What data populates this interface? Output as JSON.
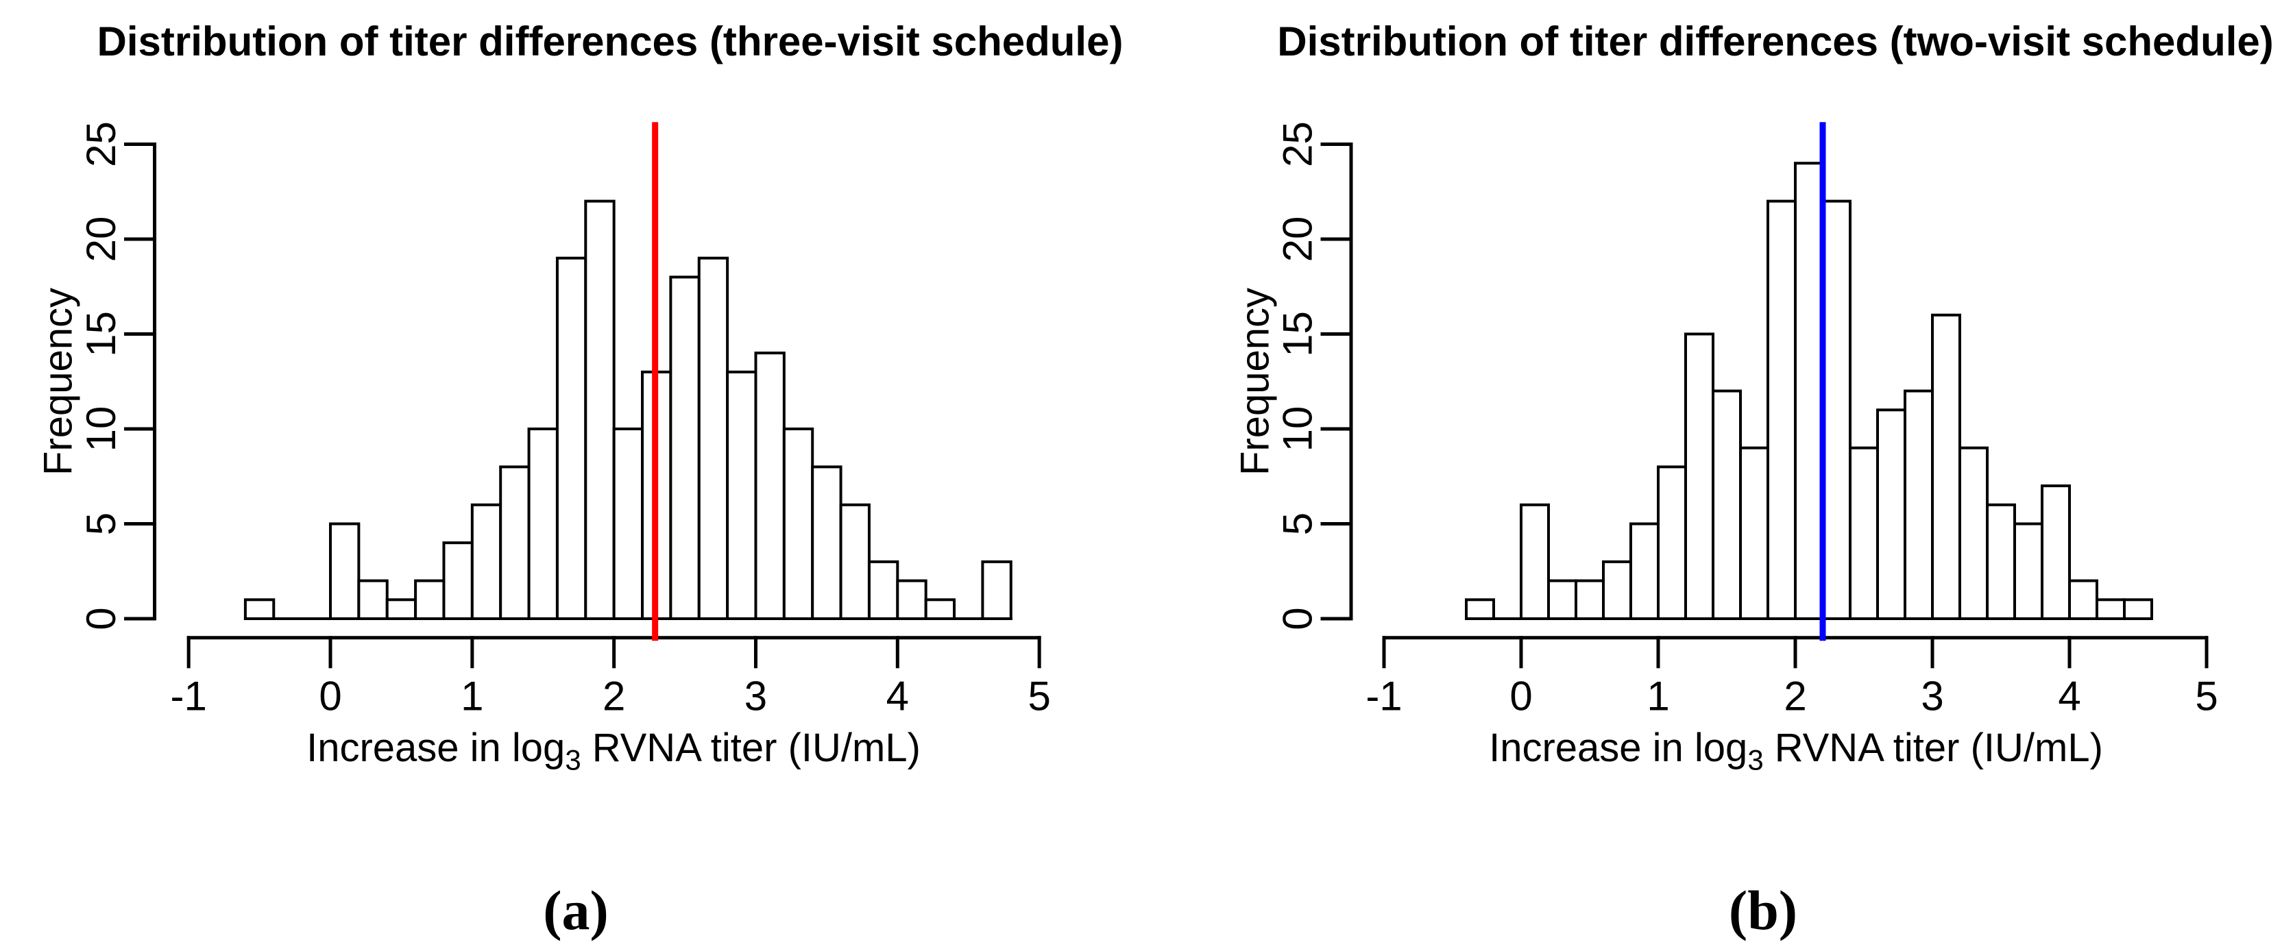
{
  "figure": {
    "captions": {
      "a": "(a)",
      "b": "(b)"
    }
  },
  "chart_data": [
    {
      "type": "bar",
      "panel": "a",
      "title": "Distribution of titer differences (three-visit schedule)",
      "ylabel": "Frequency",
      "xlabel_parts": {
        "pre": "Increase in log",
        "sub": "3",
        "post": " RVNA titer (IU/mL)"
      },
      "x_ticks": [
        -1,
        0,
        1,
        2,
        3,
        4,
        5
      ],
      "y_ticks": [
        0,
        5,
        10,
        15,
        20,
        25
      ],
      "xlim": [
        -1.24,
        5.24
      ],
      "ylim": [
        -1,
        26
      ],
      "grid": false,
      "legend": "none",
      "bin_start": -0.6,
      "bin_width": 0.2,
      "counts": [
        1,
        0,
        0,
        5,
        2,
        1,
        2,
        4,
        6,
        8,
        10,
        19,
        22,
        10,
        13,
        18,
        19,
        13,
        14,
        10,
        8,
        6,
        3,
        2,
        1,
        0,
        3
      ],
      "mean_line": {
        "x": 2.29,
        "color": "#FF0000"
      },
      "bar_fill": "#FFFFFF",
      "bar_stroke": "#000000"
    },
    {
      "type": "bar",
      "panel": "b",
      "title": "Distribution of titer differences (two-visit schedule)",
      "ylabel": "Frequency",
      "xlabel_parts": {
        "pre": "Increase in log",
        "sub": "3",
        "post": " RVNA titer (IU/mL)"
      },
      "x_ticks": [
        -1,
        0,
        1,
        2,
        3,
        4,
        5
      ],
      "y_ticks": [
        0,
        5,
        10,
        15,
        20,
        25
      ],
      "xlim": [
        -1.24,
        5.24
      ],
      "ylim": [
        -1,
        26
      ],
      "grid": false,
      "legend": "none",
      "bin_start": -0.4,
      "bin_width": 0.2,
      "counts": [
        1,
        0,
        6,
        2,
        2,
        3,
        5,
        8,
        15,
        12,
        9,
        22,
        24,
        22,
        9,
        11,
        12,
        16,
        9,
        6,
        5,
        7,
        2,
        1,
        1
      ],
      "mean_line": {
        "x": 2.2,
        "color": "#0000FF"
      },
      "bar_fill": "#FFFFFF",
      "bar_stroke": "#000000"
    }
  ]
}
